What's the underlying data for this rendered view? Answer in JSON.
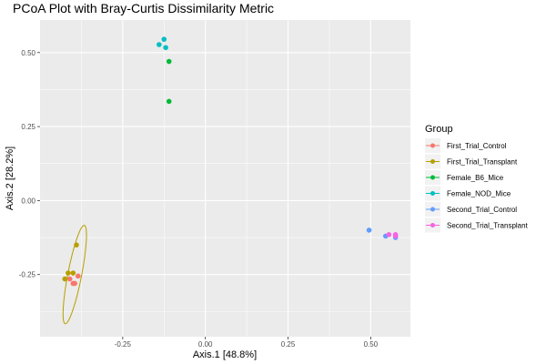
{
  "chart_data": {
    "type": "scatter",
    "title": "PCoA Plot with Bray-Curtis Dissimilarity Metric",
    "xlabel": "Axis.1   [48.8%]",
    "ylabel": "Axis.2   [28.2%]",
    "xlim": [
      -0.5,
      0.62
    ],
    "ylim": [
      -0.46,
      0.61
    ],
    "x_ticks": [
      -0.25,
      0.0,
      0.25,
      0.5
    ],
    "x_tick_labels": [
      "-0.25",
      "0.00",
      "0.25",
      "0.50"
    ],
    "y_ticks": [
      -0.25,
      0.0,
      0.25,
      0.5
    ],
    "y_tick_labels": [
      "-0.25",
      "0.00",
      "0.25",
      "0.50"
    ],
    "grid": true,
    "legend": {
      "title": "Group",
      "position": "right"
    },
    "series": [
      {
        "name": "First_Trial_Control",
        "color": "#F8766D",
        "points": [
          [
            -0.395,
            -0.28
          ],
          [
            -0.4,
            -0.28
          ],
          [
            -0.385,
            -0.255
          ],
          [
            -0.41,
            -0.265
          ]
        ]
      },
      {
        "name": "First_Trial_Transplant",
        "color": "#B79F00",
        "points": [
          [
            -0.39,
            -0.15
          ],
          [
            -0.415,
            -0.245
          ],
          [
            -0.4,
            -0.245
          ],
          [
            -0.425,
            -0.265
          ]
        ],
        "ellipse": {
          "cx": -0.395,
          "cy": -0.25,
          "rx": 0.16,
          "ry": 0.022,
          "angle_deg": 79
        }
      },
      {
        "name": "Female_B6_Mice",
        "color": "#00BA38",
        "points": [
          [
            -0.11,
            0.47
          ],
          [
            -0.11,
            0.335
          ]
        ]
      },
      {
        "name": "Female_NOD_Mice",
        "color": "#00BFC4",
        "points": [
          [
            -0.14,
            0.527
          ],
          [
            -0.125,
            0.545
          ],
          [
            -0.12,
            0.517
          ]
        ]
      },
      {
        "name": "Second_Trial_Control",
        "color": "#619CFF",
        "points": [
          [
            0.495,
            -0.1
          ],
          [
            0.545,
            -0.12
          ],
          [
            0.575,
            -0.125
          ]
        ]
      },
      {
        "name": "Second_Trial_Transplant",
        "color": "#F564E3",
        "points": [
          [
            0.555,
            -0.115
          ],
          [
            0.575,
            -0.115
          ],
          [
            0.575,
            -0.12
          ]
        ]
      }
    ]
  }
}
